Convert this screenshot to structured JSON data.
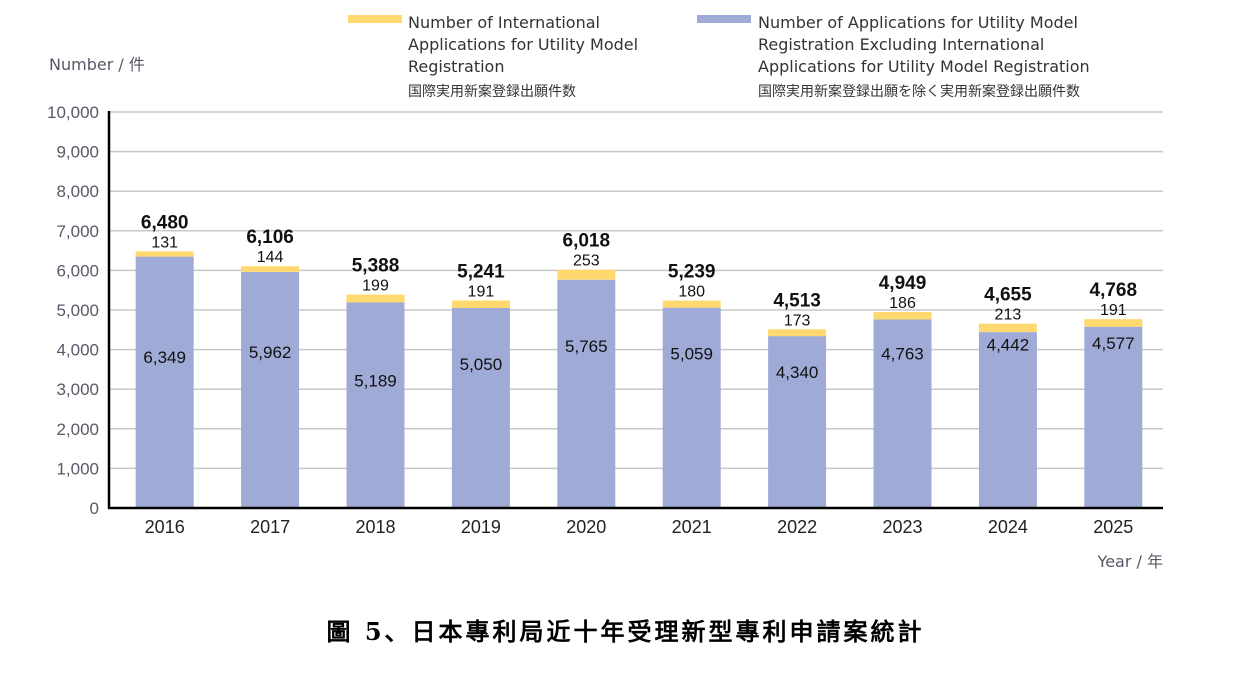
{
  "chart_data": {
    "type": "bar",
    "stacked": true,
    "title": "圖 5、日本專利局近十年受理新型專利申請案統計",
    "xlabel": "Year / 年",
    "ylabel": "Number / 件",
    "ylim": [
      0,
      10000
    ],
    "yticks": [
      0,
      1000,
      2000,
      3000,
      4000,
      5000,
      6000,
      7000,
      8000,
      9000,
      10000
    ],
    "ytick_labels": [
      "0",
      "1,000",
      "2,000",
      "3,000",
      "4,000",
      "5,000",
      "6,000",
      "7,000",
      "8,000",
      "9,000",
      "10,000"
    ],
    "grid": true,
    "legend_position": "top",
    "categories": [
      "2016",
      "2017",
      "2018",
      "2019",
      "2020",
      "2021",
      "2022",
      "2023",
      "2024",
      "2025"
    ],
    "series": [
      {
        "name": "Number of Applications for Utility Model Registration Excluding International Applications for Utility Model Registration",
        "name_lines": [
          "Number of Applications for Utility Model",
          "Registration Excluding International",
          "Applications for Utility Model Registration"
        ],
        "name_jp": "国際実用新案登録出願を除く実用新案登録出願件数",
        "color": "#a0aad6",
        "values": [
          6349,
          5962,
          5189,
          5050,
          5765,
          5059,
          4340,
          4763,
          4442,
          4577
        ],
        "labels": [
          "6,349",
          "5,962",
          "5,189",
          "5,050",
          "5,765",
          "5,059",
          "4,340",
          "4,763",
          "4,442",
          "4,577"
        ]
      },
      {
        "name": "Number of International Applications for Utility Model Registration",
        "name_lines": [
          "Number of International",
          "Applications for Utility Model",
          "Registration"
        ],
        "name_jp": "国際実用新案登録出願件数",
        "color": "#ffd970",
        "values": [
          131,
          144,
          199,
          191,
          253,
          180,
          173,
          186,
          213,
          191
        ],
        "labels": [
          "131",
          "144",
          "199",
          "191",
          "253",
          "180",
          "173",
          "186",
          "213",
          "191"
        ]
      }
    ],
    "totals": [
      6480,
      6106,
      5388,
      5241,
      6018,
      5239,
      4513,
      4949,
      4655,
      4768
    ],
    "total_labels": [
      "6,480",
      "6,106",
      "5,388",
      "5,241",
      "6,018",
      "5,239",
      "4,513",
      "4,949",
      "4,655",
      "4,768"
    ],
    "domestic_label_offsets": [
      0.6,
      0.66,
      0.62,
      0.72,
      0.71,
      0.77,
      0.79,
      0.82,
      0.93,
      0.91
    ]
  }
}
